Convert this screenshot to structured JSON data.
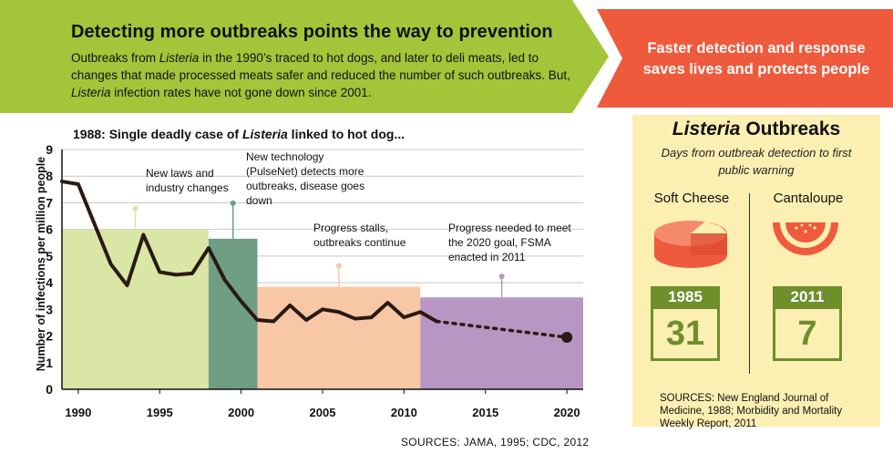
{
  "banner": {
    "headline": "Detecting more outbreaks points the way to prevention",
    "intro_parts": [
      "Outbreaks from ",
      "Listeria",
      " in the 1990’s traced to hot dogs, and later to deli meats, led to changes that made processed meats safer and reduced the number of such outbreaks. But, ",
      "Listeria",
      " infection rates have not gone down since 2001."
    ],
    "callout": "Faster detection and response saves lives and protects people",
    "green_color": "#a3c539",
    "red_color": "#ef5a3c"
  },
  "chart_data": {
    "type": "line",
    "title_parts": [
      "1988: Single deadly case of ",
      "Listeria",
      " linked to hot dog..."
    ],
    "ylabel": "Number of infections per million people",
    "xlabel": "",
    "xlim": [
      1989,
      2021
    ],
    "ylim": [
      0,
      9
    ],
    "x_ticks": [
      "1990",
      "1995",
      "2000",
      "2005",
      "2010",
      "2015",
      "2020"
    ],
    "y_ticks": [
      "0",
      "1",
      "2",
      "3",
      "4",
      "5",
      "6",
      "7",
      "8",
      "9"
    ],
    "grid": true,
    "series": [
      {
        "line_style": "solid",
        "x": [
          1989,
          1990,
          1992,
          1993,
          1994,
          1995,
          1996,
          1997,
          1998,
          1999,
          2000,
          2001,
          2002,
          2003,
          2004,
          2005,
          2006,
          2007,
          2008,
          2009,
          2010,
          2011,
          2012
        ],
        "y": [
          7.8,
          7.7,
          4.7,
          3.9,
          5.8,
          4.4,
          4.3,
          4.35,
          5.3,
          4.1,
          3.3,
          2.6,
          2.55,
          3.15,
          2.6,
          3.0,
          2.9,
          2.65,
          2.7,
          3.25,
          2.7,
          2.9,
          2.55
        ]
      },
      {
        "line_style": "dotted",
        "x": [
          2012,
          2020
        ],
        "y": [
          2.55,
          1.95
        ]
      }
    ],
    "periods": [
      {
        "label": "New laws and industry changes",
        "start": 1989,
        "end": 1998,
        "height": 6.0,
        "color": "#d9e6a6"
      },
      {
        "label": "New technology (PulseNet) detects more outbreaks, disease goes down",
        "start": 1998,
        "end": 2001,
        "height": 5.65,
        "color": "#6f9e85"
      },
      {
        "label": "Progress stalls, outbreaks continue",
        "start": 2001,
        "end": 2011,
        "height": 3.85,
        "color": "#f7c7a6"
      },
      {
        "label": "Progress needed to meet the 2020 goal, FSMA enacted in 2011",
        "start": 2011,
        "end": 2021,
        "height": 3.45,
        "color": "#b796c4"
      }
    ],
    "source": "SOURCES: JAMA, 1995; CDC, 2012"
  },
  "panel": {
    "title_parts": [
      "Listeria",
      " Outbreaks"
    ],
    "subtitle": "Days from outbreak detection to first public warning",
    "items": [
      {
        "name": "Soft Cheese",
        "year": "1985",
        "days": "31"
      },
      {
        "name": "Cantaloupe",
        "year": "2011",
        "days": "7"
      }
    ],
    "sources": "SOURCES: New England Journal of Medicine, 1988; Morbidity and Mortality Weekly Report, 2011",
    "accent_color": "#6e8f2b",
    "icon_color": "#ef5a3c"
  }
}
